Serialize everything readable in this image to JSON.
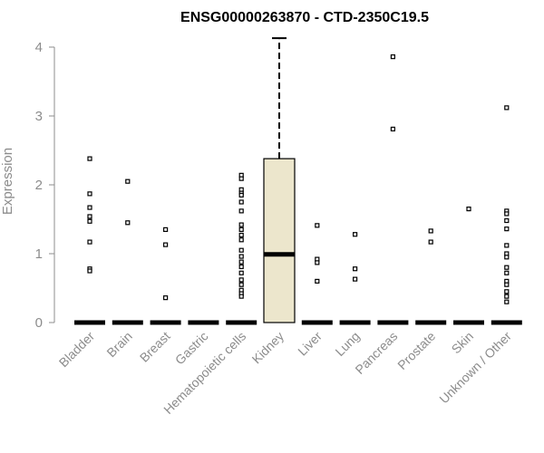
{
  "chart_data": {
    "type": "boxplot",
    "title": "ENSG00000263870 - CTD-2350C19.5",
    "xlabel": "",
    "ylabel": "Expression",
    "ylim": [
      0,
      4
    ],
    "yticks": [
      0,
      1,
      2,
      3,
      4
    ],
    "box_fill": "#ece6cc",
    "categories": [
      "Bladder",
      "Brain",
      "Breast",
      "Gastric",
      "Hematopoietic cells",
      "Kidney",
      "Liver",
      "Lung",
      "Pancreas",
      "Prostate",
      "Skin",
      "Unknown / Other"
    ],
    "boxes": [
      {
        "category": "Bladder",
        "q1": 0,
        "median": 0,
        "q3": 0,
        "whisker_low": 0,
        "whisker_high": 0,
        "outliers": [
          2.38,
          1.87,
          1.67,
          1.54,
          1.47,
          1.17,
          0.78,
          0.75
        ]
      },
      {
        "category": "Brain",
        "q1": 0,
        "median": 0,
        "q3": 0,
        "whisker_low": 0,
        "whisker_high": 0,
        "outliers": [
          2.05,
          1.45
        ]
      },
      {
        "category": "Breast",
        "q1": 0,
        "median": 0,
        "q3": 0,
        "whisker_low": 0,
        "whisker_high": 0,
        "outliers": [
          1.35,
          1.13,
          0.36
        ]
      },
      {
        "category": "Gastric",
        "q1": 0,
        "median": 0,
        "q3": 0,
        "whisker_low": 0,
        "whisker_high": 0,
        "outliers": []
      },
      {
        "category": "Hematopoietic cells",
        "q1": 0,
        "median": 0,
        "q3": 0,
        "whisker_low": 0,
        "whisker_high": 0,
        "outliers": [
          2.14,
          2.09,
          1.93,
          1.88,
          1.85,
          1.75,
          1.62,
          1.42,
          1.35,
          1.27,
          1.2,
          1.05,
          0.96,
          0.88,
          0.81,
          0.72,
          0.62,
          0.55,
          0.47,
          0.42,
          0.38
        ]
      },
      {
        "category": "Kidney",
        "q1": 0,
        "median": 0.99,
        "q3": 2.38,
        "whisker_low": 0,
        "whisker_high": 4.13,
        "outliers": []
      },
      {
        "category": "Liver",
        "q1": 0,
        "median": 0,
        "q3": 0,
        "whisker_low": 0,
        "whisker_high": 0,
        "outliers": [
          1.41,
          0.92,
          0.87,
          0.6
        ]
      },
      {
        "category": "Lung",
        "q1": 0,
        "median": 0,
        "q3": 0,
        "whisker_low": 0,
        "whisker_high": 0,
        "outliers": [
          1.28,
          0.78,
          0.63
        ]
      },
      {
        "category": "Pancreas",
        "q1": 0,
        "median": 0,
        "q3": 0,
        "whisker_low": 0,
        "whisker_high": 0,
        "outliers": [
          3.86,
          2.81
        ]
      },
      {
        "category": "Prostate",
        "q1": 0,
        "median": 0,
        "q3": 0,
        "whisker_low": 0,
        "whisker_high": 0,
        "outliers": [
          1.33,
          1.17
        ]
      },
      {
        "category": "Skin",
        "q1": 0,
        "median": 0,
        "q3": 0,
        "whisker_low": 0,
        "whisker_high": 0,
        "outliers": [
          1.65
        ]
      },
      {
        "category": "Unknown / Other",
        "q1": 0,
        "median": 0,
        "q3": 0,
        "whisker_low": 0,
        "whisker_high": 0,
        "outliers": [
          3.12,
          1.62,
          1.58,
          1.48,
          1.36,
          1.12,
          1.0,
          0.95,
          0.8,
          0.72,
          0.6,
          0.55,
          0.45,
          0.38,
          0.3
        ]
      }
    ]
  }
}
